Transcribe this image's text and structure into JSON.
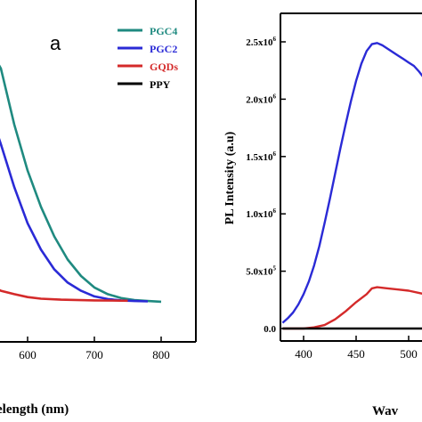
{
  "chart_data": [
    {
      "type": "line",
      "panel_label": "a",
      "xlabel": "elength (nm)",
      "ylabel": "",
      "xlim": [
        450,
        820
      ],
      "ylim": [
        0,
        1.0
      ],
      "x_ticks": [
        600,
        700,
        800
      ],
      "x_tick_labels": [
        "600",
        "700",
        "800"
      ],
      "legend_position": "top-right",
      "series": [
        {
          "name": "PGC4",
          "color": "#1f8a80",
          "points": [
            [
              540,
              0.8
            ],
            [
              560,
              0.73
            ],
            [
              580,
              0.56
            ],
            [
              600,
              0.42
            ],
            [
              620,
              0.31
            ],
            [
              640,
              0.22
            ],
            [
              660,
              0.15
            ],
            [
              680,
              0.1
            ],
            [
              700,
              0.065
            ],
            [
              720,
              0.045
            ],
            [
              740,
              0.033
            ],
            [
              760,
              0.027
            ],
            [
              780,
              0.024
            ],
            [
              800,
              0.022
            ]
          ]
        },
        {
          "name": "PGC2",
          "color": "#2a2ad6",
          "points": [
            [
              540,
              0.62
            ],
            [
              560,
              0.5
            ],
            [
              580,
              0.37
            ],
            [
              600,
              0.26
            ],
            [
              620,
              0.18
            ],
            [
              640,
              0.12
            ],
            [
              660,
              0.08
            ],
            [
              680,
              0.055
            ],
            [
              700,
              0.038
            ],
            [
              720,
              0.03
            ],
            [
              740,
              0.026
            ],
            [
              760,
              0.024
            ],
            [
              780,
              0.023
            ]
          ]
        },
        {
          "name": "GQDs",
          "color": "#d42a2a",
          "points": [
            [
              540,
              0.075
            ],
            [
              560,
              0.055
            ],
            [
              580,
              0.045
            ],
            [
              600,
              0.036
            ],
            [
              620,
              0.031
            ],
            [
              650,
              0.028
            ],
            [
              700,
              0.026
            ],
            [
              750,
              0.025
            ]
          ]
        },
        {
          "name": "PPY",
          "color": "#000000",
          "points": []
        }
      ]
    },
    {
      "type": "line",
      "ylabel": "PL Intensity (a.u)",
      "xlabel": "Wav",
      "xlim": [
        380,
        530
      ],
      "ylim": [
        -0.2,
        2.8
      ],
      "x_ticks": [
        400,
        450,
        500
      ],
      "x_tick_labels": [
        "400",
        "450",
        "500"
      ],
      "y_ticks": [
        0,
        0.5,
        1.0,
        1.5,
        2.0,
        2.5
      ],
      "y_tick_labels": [
        {
          "base": "0.0",
          "exp": ""
        },
        {
          "base": "5.0x10",
          "exp": "5"
        },
        {
          "base": "1.0x10",
          "exp": "6"
        },
        {
          "base": "1.5x10",
          "exp": "6"
        },
        {
          "base": "2.0x10",
          "exp": "6"
        },
        {
          "base": "2.5x10",
          "exp": "6"
        }
      ],
      "series": [
        {
          "name": "",
          "color": "#2a2ad6",
          "points": [
            [
              380,
              0.05
            ],
            [
              385,
              0.09
            ],
            [
              390,
              0.14
            ],
            [
              395,
              0.21
            ],
            [
              400,
              0.3
            ],
            [
              405,
              0.41
            ],
            [
              410,
              0.55
            ],
            [
              415,
              0.72
            ],
            [
              420,
              0.92
            ],
            [
              425,
              1.13
            ],
            [
              430,
              1.35
            ],
            [
              435,
              1.57
            ],
            [
              440,
              1.78
            ],
            [
              445,
              1.98
            ],
            [
              450,
              2.16
            ],
            [
              455,
              2.31
            ],
            [
              460,
              2.42
            ],
            [
              465,
              2.48
            ],
            [
              470,
              2.49
            ],
            [
              475,
              2.47
            ],
            [
              480,
              2.44
            ],
            [
              485,
              2.41
            ],
            [
              490,
              2.38
            ],
            [
              495,
              2.35
            ],
            [
              500,
              2.32
            ],
            [
              505,
              2.29
            ],
            [
              510,
              2.24
            ],
            [
              515,
              2.18
            ],
            [
              520,
              2.12
            ],
            [
              525,
              2.05
            ],
            [
              530,
              2.0
            ]
          ]
        },
        {
          "name": "",
          "color": "#d42a2a",
          "points": [
            [
              380,
              0.0
            ],
            [
              400,
              0.0
            ],
            [
              410,
              0.01
            ],
            [
              420,
              0.03
            ],
            [
              430,
              0.08
            ],
            [
              440,
              0.15
            ],
            [
              450,
              0.23
            ],
            [
              460,
              0.3
            ],
            [
              465,
              0.35
            ],
            [
              470,
              0.36
            ],
            [
              480,
              0.35
            ],
            [
              490,
              0.34
            ],
            [
              500,
              0.33
            ],
            [
              510,
              0.31
            ],
            [
              520,
              0.29
            ],
            [
              530,
              0.27
            ]
          ]
        },
        {
          "name": "",
          "color": "#000000",
          "points": [
            [
              380,
              0.0
            ],
            [
              530,
              0.0
            ]
          ]
        }
      ]
    }
  ]
}
